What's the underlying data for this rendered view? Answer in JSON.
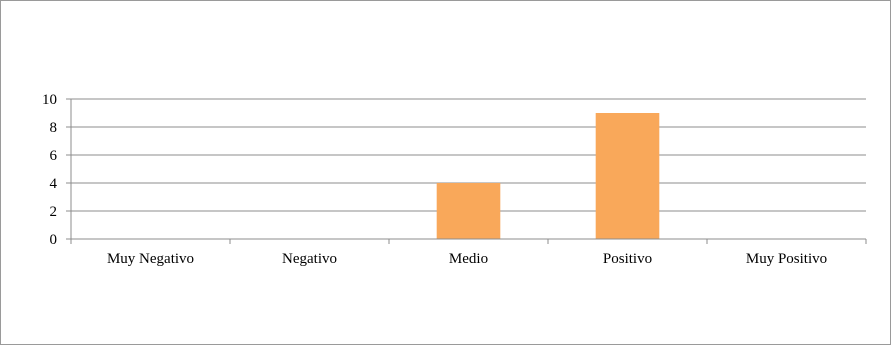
{
  "chart_data": {
    "type": "bar",
    "title": "",
    "xlabel": "",
    "ylabel": "",
    "categories": [
      "Muy Negativo",
      "Negativo",
      "Medio",
      "Positivo",
      "Muy Positivo"
    ],
    "values": [
      0,
      0,
      4,
      9,
      0
    ],
    "ylim": [
      0,
      10
    ],
    "yticks": [
      0,
      2,
      4,
      6,
      8,
      10
    ],
    "grid": true,
    "legend": "none",
    "colors": {
      "bar": "#F9A85A",
      "gridline": "#8c8c8c",
      "axis": "#8c8c8c",
      "frame": "#9a9a9a"
    }
  }
}
